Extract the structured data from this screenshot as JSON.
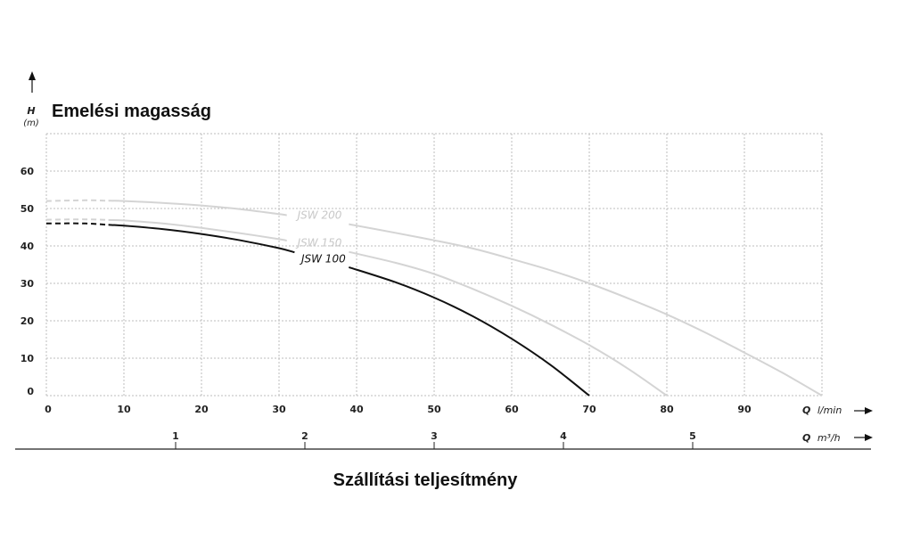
{
  "chart_data": {
    "type": "line",
    "title": "Emelési magasság",
    "xlabel": "Szállítási teljesítmény",
    "y_axis": {
      "symbol": "H",
      "unit": "(m)"
    },
    "x_axis_primary": {
      "symbol": "Q",
      "unit": "l/min"
    },
    "x_axis_secondary": {
      "symbol": "Q",
      "unit": "m³/h"
    },
    "xlim": [
      0,
      100
    ],
    "ylim": [
      0,
      70
    ],
    "x_ticks": [
      "0",
      "10",
      "20",
      "30",
      "40",
      "50",
      "60",
      "70",
      "80",
      "90"
    ],
    "y_ticks": [
      "0",
      "10",
      "20",
      "30",
      "40",
      "50",
      "60"
    ],
    "secondary_ticks": [
      {
        "value": 1,
        "label": "1"
      },
      {
        "value": 2,
        "label": "2"
      },
      {
        "value": 3,
        "label": "3"
      },
      {
        "value": 4,
        "label": "4"
      },
      {
        "value": 5,
        "label": "5"
      }
    ],
    "grid": true,
    "series": [
      {
        "name": "JSW 200",
        "color": "#d4d4d4",
        "dashed_until_x": 8,
        "gap": [
          31,
          39
        ],
        "x": [
          0,
          5,
          10,
          15,
          20,
          25,
          30,
          31,
          39,
          45,
          50,
          55,
          60,
          65,
          70,
          75,
          80,
          85,
          90,
          95,
          100
        ],
        "y": [
          52,
          52.2,
          52,
          51.5,
          50.8,
          49.8,
          48.5,
          48.2,
          45.8,
          43.5,
          41.5,
          39.3,
          36.5,
          33.5,
          30,
          26,
          21.7,
          16.8,
          11.5,
          6,
          0
        ]
      },
      {
        "name": "JSW 150",
        "color": "#d4d4d4",
        "dashed_until_x": 8,
        "gap": [
          31,
          39
        ],
        "x": [
          0,
          5,
          10,
          15,
          20,
          25,
          30,
          31,
          39,
          45,
          50,
          55,
          60,
          65,
          70,
          75,
          80
        ],
        "y": [
          47,
          47.1,
          46.8,
          46,
          44.8,
          43.4,
          41.8,
          41.4,
          38.4,
          35.5,
          32.5,
          28.5,
          24,
          19,
          13.5,
          7.2,
          0
        ]
      },
      {
        "name": "JSW 100",
        "color": "#111111",
        "dashed_until_x": 8,
        "gap": [
          32,
          39
        ],
        "x": [
          0,
          5,
          10,
          15,
          20,
          25,
          30,
          32,
          39,
          45,
          50,
          55,
          60,
          65,
          70
        ],
        "y": [
          46,
          46,
          45.4,
          44.5,
          43.2,
          41.5,
          39.4,
          38.3,
          34.3,
          30.3,
          26.2,
          21.2,
          15.2,
          8.2,
          0
        ]
      }
    ]
  }
}
